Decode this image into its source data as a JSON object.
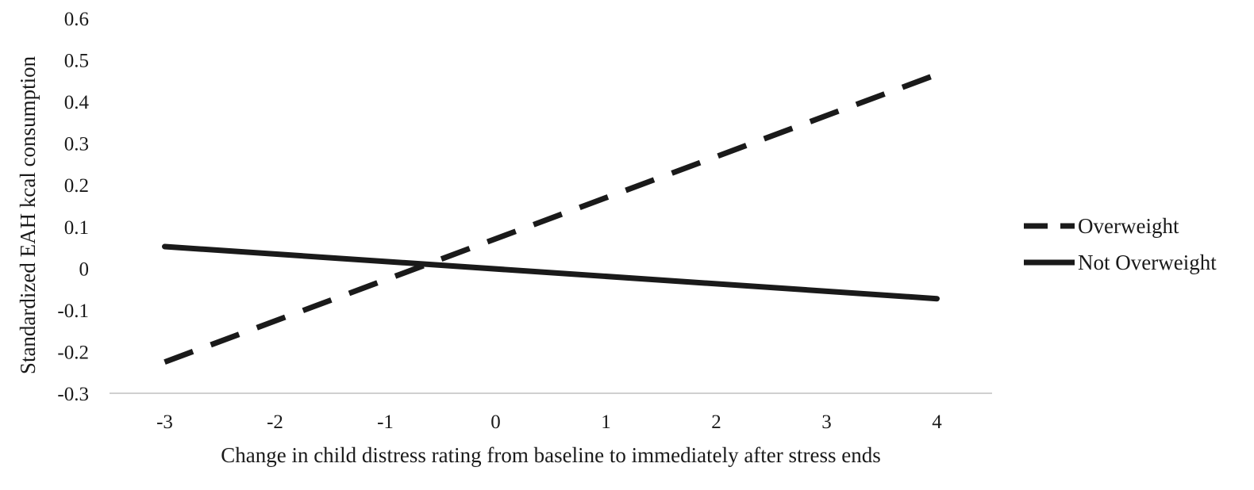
{
  "chart_data": {
    "type": "line",
    "title": "",
    "xlabel": "Change in child distress rating from baseline to immediately after stress ends",
    "ylabel": "Standardized EAH kcal consumption",
    "x": [
      -3,
      -2,
      -1,
      0,
      1,
      2,
      3,
      4
    ],
    "x_tick_labels": [
      "-3",
      "-2",
      "-1",
      "0",
      "1",
      "2",
      "3",
      "4"
    ],
    "y_tick_values": [
      -0.3,
      -0.2,
      -0.1,
      0,
      0.1,
      0.2,
      0.3,
      0.4,
      0.5,
      0.6
    ],
    "y_tick_labels": [
      "-0.3",
      "-0.2",
      "-0.1",
      "0",
      "0.1",
      "0.2",
      "0.3",
      "0.4",
      "0.5",
      "0.6"
    ],
    "xlim": [
      -3.5,
      4.5
    ],
    "ylim": [
      -0.3,
      0.6
    ],
    "grid": false,
    "legend_position": "right",
    "series": [
      {
        "name": "Overweight",
        "line_style": "dashed",
        "color": "#1a1a1a",
        "x": [
          -3,
          4
        ],
        "values": [
          -0.225,
          0.465
        ]
      },
      {
        "name": "Not Overweight",
        "line_style": "solid",
        "color": "#1a1a1a",
        "x": [
          -3,
          4
        ],
        "values": [
          0.052,
          -0.073
        ]
      }
    ]
  }
}
